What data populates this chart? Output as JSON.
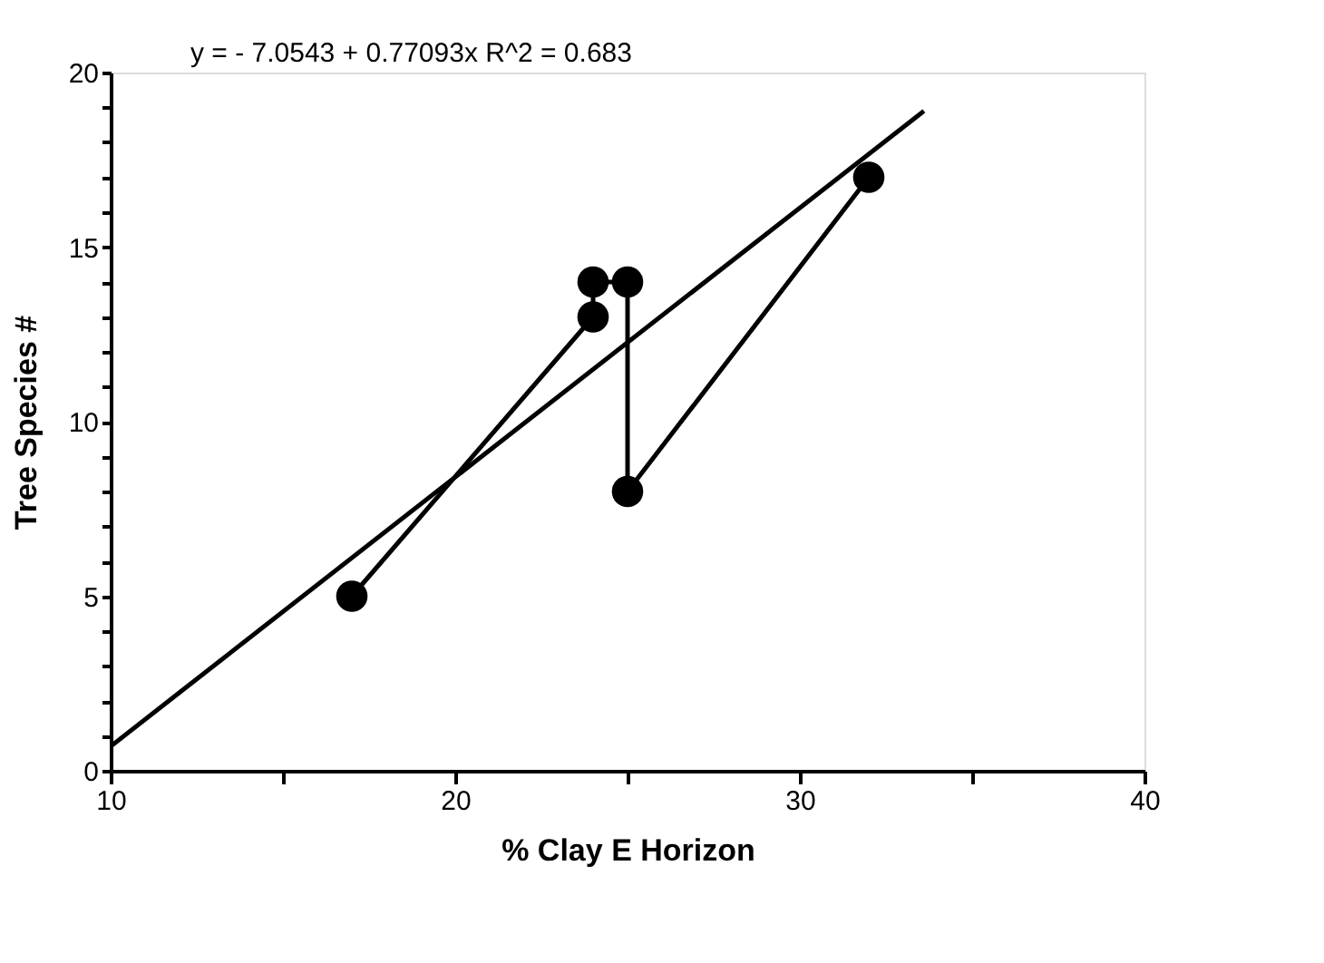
{
  "chart_data": {
    "type": "line",
    "xlabel": "% Clay  E  Horizon",
    "ylabel": "Tree  Species  #",
    "series": [
      {
        "marker": "circle",
        "color": "#000000",
        "x": [
          17,
          24,
          24,
          25,
          25,
          32
        ],
        "values": [
          5,
          13,
          14,
          14,
          8,
          17
        ]
      },
      {
        "marker": "none",
        "color": "#000000",
        "x": [
          10,
          33.6
        ],
        "values": [
          0.7,
          18.9
        ]
      }
    ],
    "annotations": [
      "y =  - 7.0543 + 0.77093x     R^2 = 0.683"
    ],
    "xlim": [
      10,
      40
    ],
    "xticks": [
      10,
      {
        "value": 15,
        "label": null
      },
      20,
      {
        "value": 25,
        "label": null
      },
      30,
      {
        "value": 35,
        "label": null
      },
      40
    ],
    "ylim": [
      0,
      20
    ],
    "yticks": [
      0,
      {
        "value": 1,
        "label": null
      },
      {
        "value": 2,
        "label": null
      },
      {
        "value": 3,
        "label": null
      },
      {
        "value": 4,
        "label": null
      },
      5,
      {
        "value": 6,
        "label": null
      },
      {
        "value": 7,
        "label": null
      },
      {
        "value": 8,
        "label": null
      },
      {
        "value": 9,
        "label": null
      },
      10,
      {
        "value": 11,
        "label": null
      },
      {
        "value": 12,
        "label": null
      },
      {
        "value": 13,
        "label": null
      },
      {
        "value": 14,
        "label": null
      },
      15,
      {
        "value": 16,
        "label": null
      },
      {
        "value": 17,
        "label": null
      },
      {
        "value": 18,
        "label": null
      },
      {
        "value": 19,
        "label": null
      },
      20
    ],
    "grid": false
  }
}
